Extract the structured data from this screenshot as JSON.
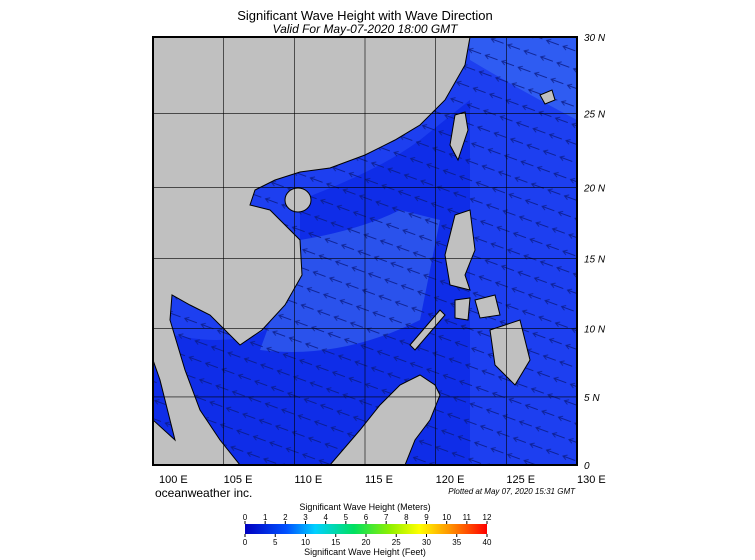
{
  "header": {
    "title": "Significant Wave Height with Wave Direction",
    "subtitle": "Valid For May-07-2020 18:00 GMT"
  },
  "map": {
    "lat_ticks": [
      {
        "value": 30,
        "label": "30 N"
      },
      {
        "value": 25,
        "label": "25 N"
      },
      {
        "value": 20,
        "label": "20 N"
      },
      {
        "value": 15,
        "label": "15 N"
      },
      {
        "value": 10,
        "label": "10 N"
      },
      {
        "value": 5,
        "label": "5 N"
      },
      0
    ],
    "lon_ticks": [
      {
        "value": 100,
        "label": "100 E"
      },
      {
        "value": 105,
        "label": "105 E"
      },
      {
        "value": 110,
        "label": "110 E"
      },
      {
        "value": 115,
        "label": "115 E"
      },
      {
        "value": 120,
        "label": "120 E"
      },
      {
        "value": 125,
        "label": "125 E"
      },
      {
        "value": 130,
        "label": "130 E"
      }
    ],
    "latlim": [
      0,
      30
    ],
    "lonlim": [
      100,
      130
    ]
  },
  "footer": {
    "credit": "oceanweather inc.",
    "plotted": "Plotted at May 07, 2020 15:31 GMT"
  },
  "colorbar": {
    "meters_title": "Significant Wave Height (Meters)",
    "meters_ticks": [
      0,
      1,
      2,
      3,
      4,
      5,
      6,
      7,
      8,
      9,
      10,
      11,
      12
    ],
    "feet_ticks": [
      0,
      5,
      10,
      15,
      20,
      25,
      30,
      35,
      40
    ],
    "feet_title": "Significant Wave Height (Feet)"
  }
}
